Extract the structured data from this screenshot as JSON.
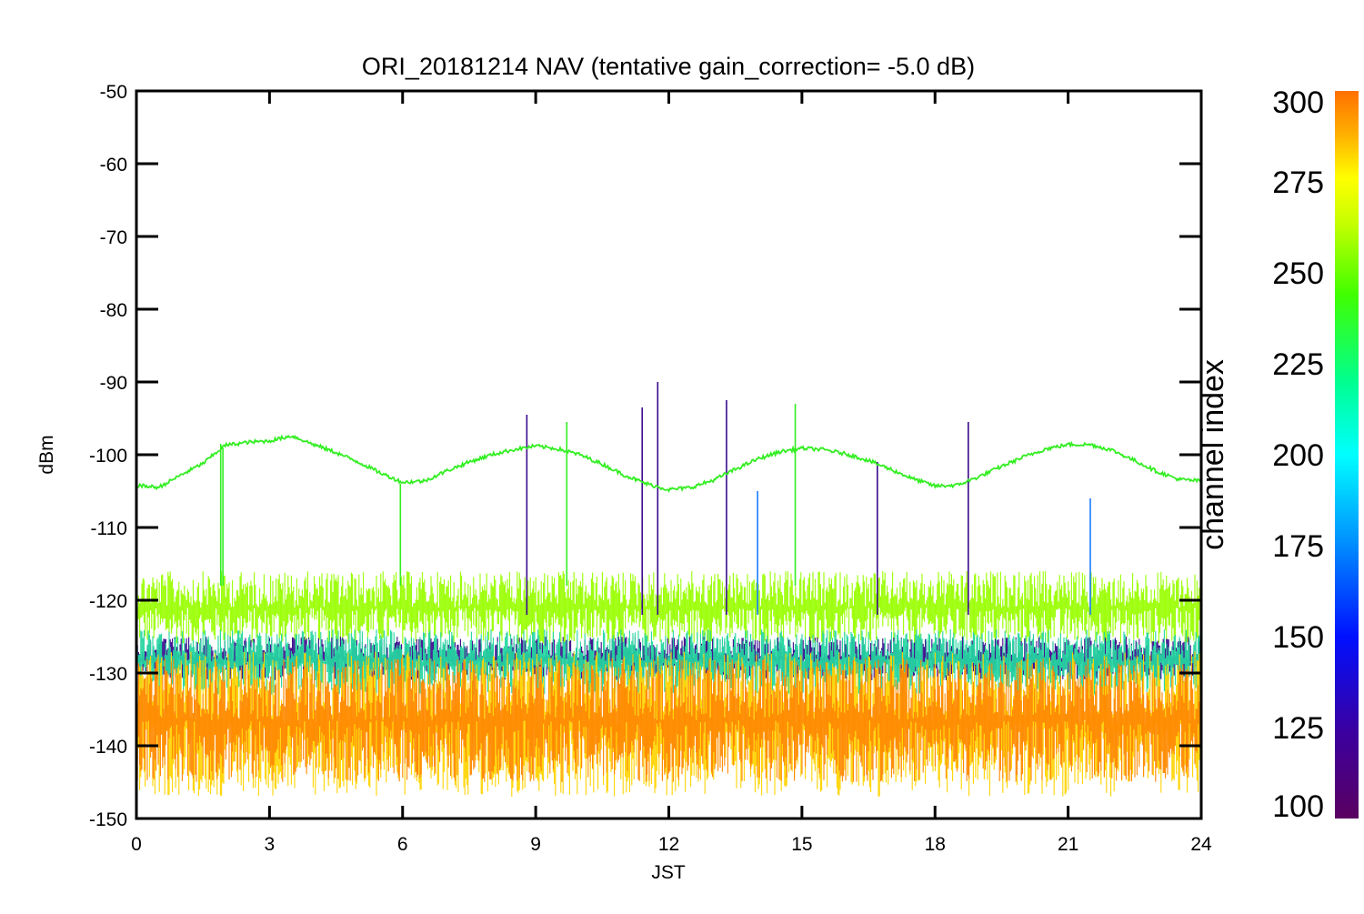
{
  "chart_data": {
    "type": "line",
    "title": "ORI_20181214 NAV (tentative gain_correction= -5.0 dB)",
    "xlabel": "JST",
    "ylabel": "dBm",
    "xlim": [
      0,
      24
    ],
    "ylim": [
      -150,
      -50
    ],
    "x_ticks": [
      "0",
      "3",
      "6",
      "9",
      "12",
      "15",
      "18",
      "21",
      "24"
    ],
    "y_ticks": [
      "-50",
      "-60",
      "-70",
      "-80",
      "-90",
      "-100",
      "-110",
      "-120",
      "-130",
      "-140",
      "-150"
    ],
    "colorbar": {
      "label": "channel index",
      "range": [
        100,
        300
      ],
      "ticks": [
        "300",
        "275",
        "250",
        "225",
        "200",
        "175",
        "150",
        "125",
        "100"
      ],
      "colormap": "rainbow"
    },
    "series": [
      {
        "channel_index": 240,
        "color": "#33ee22",
        "x": [
          0,
          0.5,
          1,
          1.5,
          2,
          2.5,
          3,
          3.5,
          4,
          4.5,
          5,
          5.5,
          6,
          6.5,
          7,
          7.5,
          8,
          8.5,
          9,
          9.5,
          10,
          10.5,
          11,
          11.5,
          12,
          12.5,
          13,
          13.5,
          14,
          14.5,
          15,
          15.5,
          16,
          16.5,
          17,
          17.5,
          18,
          18.5,
          19,
          19.5,
          20,
          20.5,
          21,
          21.5,
          22,
          22.5,
          23,
          23.5,
          24
        ],
        "y": [
          -104.2,
          -104.5,
          -102.8,
          -101.2,
          -98.7,
          -98.3,
          -98.1,
          -97.4,
          -98.6,
          -99.7,
          -101.0,
          -102.5,
          -103.8,
          -103.6,
          -102.2,
          -101.0,
          -100.0,
          -99.3,
          -98.8,
          -99.2,
          -100.0,
          -101.3,
          -102.8,
          -104.0,
          -104.8,
          -104.5,
          -103.5,
          -102.0,
          -100.6,
          -99.6,
          -99.1,
          -99.3,
          -99.9,
          -100.8,
          -102.0,
          -103.3,
          -104.3,
          -104.2,
          -103.0,
          -101.6,
          -100.3,
          -99.2,
          -98.6,
          -98.6,
          -99.4,
          -100.8,
          -102.3,
          -103.4,
          -103.6
        ]
      }
    ],
    "noise_bands": [
      {
        "channel_index": 255,
        "color": "#99ff00",
        "y_range": [
          -126,
          -116
        ]
      },
      {
        "channel_index": 110,
        "color": "#3a0a8c",
        "y_range": [
          -131,
          -125
        ]
      },
      {
        "channel_index": 200,
        "color": "#22d6a0",
        "y_range": [
          -133,
          -124
        ]
      },
      {
        "channel_index": 270,
        "color": "#ffd400",
        "y_range": [
          -147,
          -127
        ]
      },
      {
        "channel_index": 290,
        "color": "#ff8800",
        "y_range": [
          -145,
          -128
        ]
      }
    ],
    "spikes": [
      {
        "x": 1.9,
        "y": -98.5,
        "channel_index": 240
      },
      {
        "x": 1.95,
        "y": -99.0,
        "channel_index": 240
      },
      {
        "x": 5.95,
        "y": -104.0,
        "channel_index": 240
      },
      {
        "x": 8.8,
        "y": -94.5,
        "channel_index": 110
      },
      {
        "x": 9.7,
        "y": -95.5,
        "channel_index": 240
      },
      {
        "x": 11.4,
        "y": -93.5,
        "channel_index": 110
      },
      {
        "x": 11.75,
        "y": -90.0,
        "channel_index": 110
      },
      {
        "x": 13.3,
        "y": -92.5,
        "channel_index": 110
      },
      {
        "x": 14.0,
        "y": -105.0,
        "channel_index": 140
      },
      {
        "x": 14.85,
        "y": -93.0,
        "channel_index": 240
      },
      {
        "x": 16.7,
        "y": -101.0,
        "channel_index": 110
      },
      {
        "x": 18.75,
        "y": -95.5,
        "channel_index": 110
      },
      {
        "x": 21.5,
        "y": -106.0,
        "channel_index": 140
      }
    ]
  }
}
